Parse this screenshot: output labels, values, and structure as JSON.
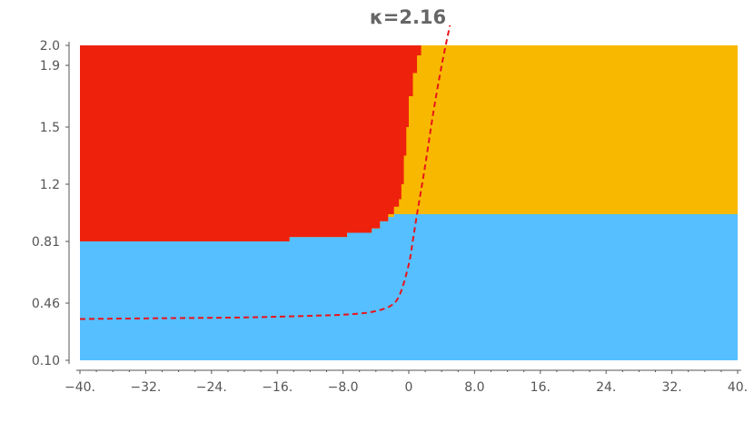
{
  "chart_data": {
    "type": "heatmap",
    "title": "κ=2.16",
    "xlabel": "",
    "ylabel": "",
    "xlim": [
      -40,
      40
    ],
    "ylim_labels": [
      "0.10",
      "0.46",
      "0.81",
      "1.2",
      "1.5",
      "1.9",
      "2.0"
    ],
    "x_ticks": [
      -40,
      -32,
      -24,
      -16,
      -8,
      0,
      8,
      16,
      24,
      32,
      40
    ],
    "x_tick_labels": [
      "−40.",
      "−32.",
      "−24.",
      "−16.",
      "−8.0",
      "0",
      "8.0",
      "16.",
      "24.",
      "32.",
      "40."
    ],
    "y_ticks": [
      0.1,
      0.46,
      0.81,
      1.2,
      1.5,
      1.9,
      2.0
    ],
    "y_tick_labels": [
      "0.10",
      "0.46",
      "0.81",
      "1.2",
      "1.5",
      "1.9",
      "2.0"
    ],
    "regions": [
      {
        "color": "#56bfff",
        "label": ""
      },
      {
        "color": "#f8b800",
        "label": ""
      },
      {
        "color": "#ee220c",
        "label": ""
      }
    ],
    "blue_top_boundary": {
      "x_start": -40,
      "x_end": 40,
      "y_left": 0.81,
      "y_right": 1.0,
      "switch_x": 0.5
    },
    "red_region_edge": [
      {
        "x": 1.5,
        "y": 2.0
      },
      {
        "x": 1.0,
        "y": 1.95
      },
      {
        "x": 0.5,
        "y": 1.85
      },
      {
        "x": 0.0,
        "y": 1.7
      },
      {
        "x": -0.3,
        "y": 1.5
      },
      {
        "x": -0.6,
        "y": 1.35
      },
      {
        "x": -0.9,
        "y": 1.2
      },
      {
        "x": -1.2,
        "y": 1.1
      },
      {
        "x": -1.8,
        "y": 1.05
      },
      {
        "x": -2.5,
        "y": 1.0
      },
      {
        "x": -3.5,
        "y": 0.95
      },
      {
        "x": -4.5,
        "y": 0.9
      },
      {
        "x": -7.5,
        "y": 0.87
      },
      {
        "x": -14.5,
        "y": 0.84
      },
      {
        "x": -40,
        "y": 0.81
      }
    ],
    "curve": {
      "style": "dashed",
      "color": "#e8141c",
      "points": [
        {
          "x": -40,
          "y": 0.36
        },
        {
          "x": -30,
          "y": 0.365
        },
        {
          "x": -20,
          "y": 0.37
        },
        {
          "x": -12,
          "y": 0.38
        },
        {
          "x": -7,
          "y": 0.39
        },
        {
          "x": -4,
          "y": 0.41
        },
        {
          "x": -2,
          "y": 0.45
        },
        {
          "x": -1,
          "y": 0.52
        },
        {
          "x": 0,
          "y": 0.68
        },
        {
          "x": 0.5,
          "y": 0.82
        },
        {
          "x": 1,
          "y": 1.0
        },
        {
          "x": 2,
          "y": 1.3
        },
        {
          "x": 3,
          "y": 1.6
        },
        {
          "x": 4,
          "y": 1.9
        },
        {
          "x": 5,
          "y": 2.1
        }
      ]
    }
  }
}
